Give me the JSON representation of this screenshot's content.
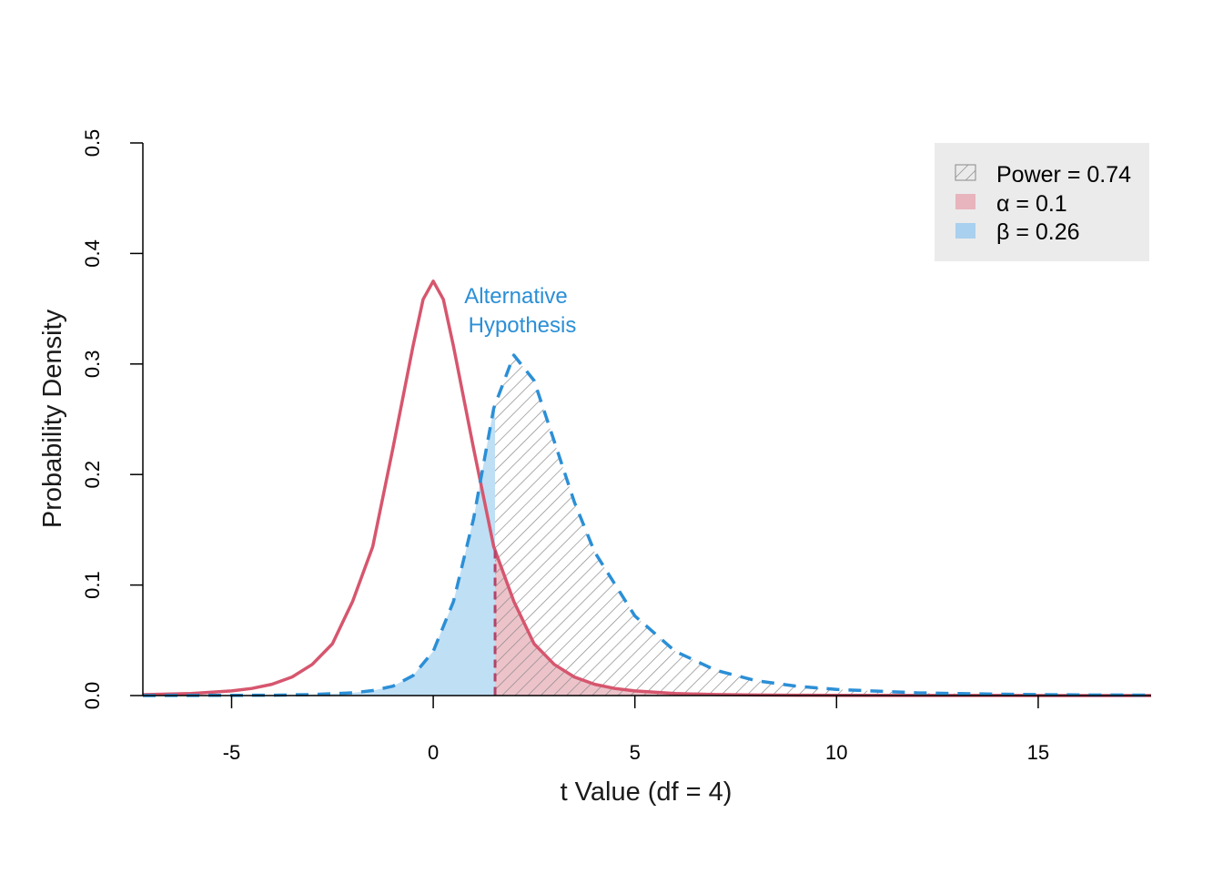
{
  "chart_data": {
    "type": "area",
    "xlabel": "t Value (df = 4)",
    "ylabel": "Probability Density",
    "xlim": [
      -7.2,
      17.8
    ],
    "ylim": [
      0,
      0.5
    ],
    "x_ticks": [
      -5,
      0,
      5,
      10,
      15
    ],
    "x_tick_labels": [
      "-5",
      "0",
      "5",
      "10",
      "15"
    ],
    "y_ticks": [
      0,
      0.1,
      0.2,
      0.3,
      0.4,
      0.5
    ],
    "y_tick_labels": [
      "0.0",
      "0.1",
      "0.2",
      "0.3",
      "0.4",
      "0.5"
    ],
    "critical_value": 1.533,
    "series": [
      {
        "name": "",
        "style": "solid",
        "color": "#d6566e",
        "x": [
          -7.2,
          -6,
          -5,
          -4.5,
          -4,
          -3.5,
          -3,
          -2.5,
          -2,
          -1.5,
          -1,
          -0.5,
          -0.25,
          0,
          0.25,
          0.5,
          1,
          1.5,
          2,
          2.5,
          3,
          3.5,
          4,
          4.5,
          5,
          6,
          7,
          8,
          9,
          10,
          12,
          14,
          16,
          17.8
        ],
        "y": [
          0.0008,
          0.0018,
          0.0042,
          0.0064,
          0.0102,
          0.0168,
          0.0282,
          0.0469,
          0.0852,
          0.1347,
          0.2237,
          0.3162,
          0.3585,
          0.375,
          0.3585,
          0.3162,
          0.2237,
          0.1347,
          0.0852,
          0.0469,
          0.0282,
          0.0168,
          0.0102,
          0.0064,
          0.0042,
          0.0018,
          0.0009,
          0.0005,
          0.0003,
          0.0002,
          0.0001,
          5e-05,
          3e-05,
          2e-05
        ]
      },
      {
        "name": "Alternative Hypothesis",
        "style": "dashed",
        "color": "#2b8fd6",
        "x": [
          -7.2,
          -4,
          -3,
          -2,
          -1.5,
          -1,
          -0.5,
          0,
          0.5,
          1,
          1.5,
          2,
          2.5,
          3,
          3.5,
          4,
          5,
          6,
          7,
          8,
          9,
          10,
          12,
          14,
          16,
          17.8
        ],
        "y": [
          0.0,
          0.0003,
          0.0009,
          0.0025,
          0.0045,
          0.0085,
          0.018,
          0.04,
          0.085,
          0.16,
          0.26,
          0.308,
          0.285,
          0.23,
          0.175,
          0.13,
          0.072,
          0.04,
          0.023,
          0.0135,
          0.0085,
          0.0055,
          0.0025,
          0.0012,
          0.0006,
          0.0004
        ]
      }
    ],
    "annotations": [
      {
        "text_line1": "Alternative",
        "text_line2": "Hypothesis",
        "x": 2.1,
        "y": 0.325,
        "color": "#2b8fd6"
      }
    ],
    "legend": {
      "position": "top-right",
      "background": "#ebebeb",
      "entries": [
        {
          "symbol": "Power",
          "value": "0.74",
          "fill": "hatch",
          "color": "#8a8a8a"
        },
        {
          "symbol": "α",
          "value": "0.1",
          "fill": "solid",
          "color": "#e8b4bd"
        },
        {
          "symbol": "β",
          "value": "0.26",
          "fill": "solid",
          "color": "#a9d0ee"
        }
      ]
    },
    "region_colors": {
      "power_hatch": "#8a8a8a",
      "alpha_fill": "#e8b4bd",
      "beta_fill": "#bfdff5"
    },
    "grid": false
  }
}
